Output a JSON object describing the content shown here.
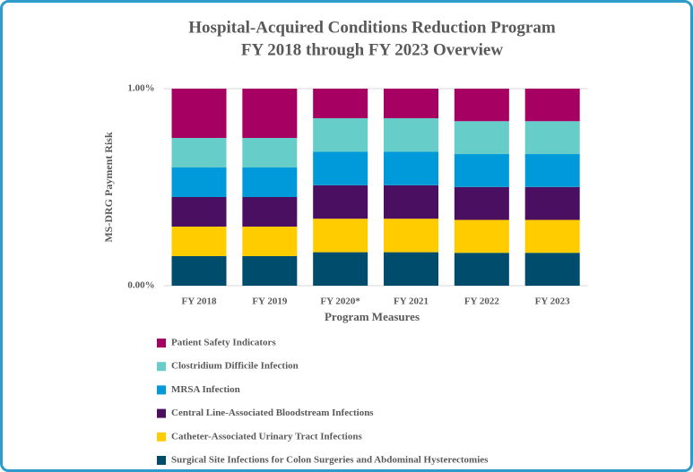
{
  "chart_data": {
    "type": "stacked_bar",
    "title": "Hospital-Acquired Conditions Reduction Program",
    "subtitle": "FY 2018 through FY 2023 Overview",
    "x_label": "Program Measures",
    "y_label": "MS-DRG Payment Risk",
    "categories": [
      "FY 2018",
      "FY 2019",
      "FY 2020*",
      "FY 2021",
      "FY 2022",
      "FY 2023"
    ],
    "series": [
      {
        "name": "Surgical Site Infections for Colon Surgeries and Abdominal Hysterectomies",
        "color": "#004c6d",
        "values": [
          0.15,
          0.15,
          0.17,
          0.17,
          0.167,
          0.167
        ]
      },
      {
        "name": "Catheter-Associated Urinary Tract Infections",
        "color": "#ffcc00",
        "values": [
          0.15,
          0.15,
          0.17,
          0.17,
          0.167,
          0.167
        ]
      },
      {
        "name": "Central Line-Associated Bloodstream Infections",
        "color": "#4b0f62",
        "values": [
          0.15,
          0.15,
          0.17,
          0.17,
          0.167,
          0.167
        ]
      },
      {
        "name": "MRSA Infection",
        "color": "#0099da",
        "values": [
          0.15,
          0.15,
          0.17,
          0.17,
          0.167,
          0.167
        ]
      },
      {
        "name": "Clostridium Difficile Infection",
        "color": "#66cdc9",
        "values": [
          0.15,
          0.15,
          0.17,
          0.17,
          0.167,
          0.167
        ]
      },
      {
        "name": "Patient Safety Indicators",
        "color": "#a50062",
        "values": [
          0.25,
          0.25,
          0.15,
          0.15,
          0.165,
          0.165
        ]
      }
    ],
    "ylim": [
      0,
      1
    ],
    "yticks": [
      {
        "value": 0,
        "label": "0.00%"
      },
      {
        "value": 1,
        "label": "1.00%"
      }
    ],
    "grid": true
  }
}
